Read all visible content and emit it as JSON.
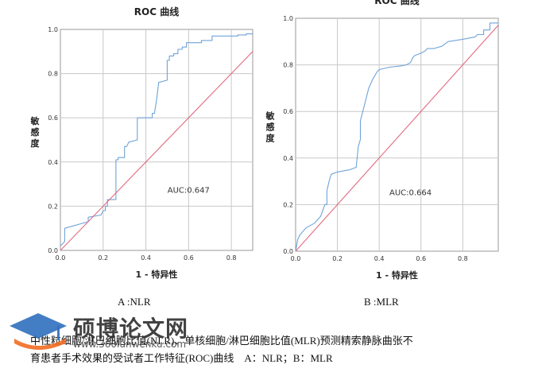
{
  "chart_data": [
    {
      "type": "line",
      "title": "ROC 曲线",
      "xlabel": "1 - 特异性",
      "ylabel": "敏感度",
      "xlim": [
        0,
        0.9
      ],
      "ylim": [
        0,
        1.0
      ],
      "xticks": [
        "0.0",
        "0.2",
        "0.4",
        "0.6",
        "0.8"
      ],
      "xtick_values": [
        0,
        0.2,
        0.4,
        0.6,
        0.8
      ],
      "yticks": [
        "0.0",
        "0.2",
        "0.4",
        "0.6",
        "0.8",
        "1.0"
      ],
      "ytick_values": [
        0,
        0.2,
        0.4,
        0.6,
        0.8,
        1.0
      ],
      "annotation": "AUC:0.647",
      "annotation_at": [
        0.6,
        0.26
      ],
      "series": [
        {
          "name": "ROC",
          "color": "#6fa3d8",
          "x": [
            0,
            0.02,
            0.02,
            0.13,
            0.13,
            0.19,
            0.2,
            0.21,
            0.21,
            0.22,
            0.22,
            0.26,
            0.26,
            0.27,
            0.27,
            0.3,
            0.3,
            0.31,
            0.32,
            0.36,
            0.36,
            0.43,
            0.43,
            0.44,
            0.45,
            0.45,
            0.46,
            0.46,
            0.5,
            0.5,
            0.51,
            0.51,
            0.53,
            0.53,
            0.55,
            0.55,
            0.57,
            0.57,
            0.59,
            0.59,
            0.66,
            0.66,
            0.71,
            0.71,
            0.83,
            0.83,
            0.87,
            0.87,
            0.9
          ],
          "y": [
            0.02,
            0.04,
            0.1,
            0.13,
            0.15,
            0.16,
            0.18,
            0.18,
            0.2,
            0.2,
            0.23,
            0.23,
            0.41,
            0.41,
            0.42,
            0.42,
            0.47,
            0.47,
            0.49,
            0.5,
            0.6,
            0.6,
            0.62,
            0.62,
            0.68,
            0.68,
            0.76,
            0.76,
            0.77,
            0.86,
            0.86,
            0.88,
            0.88,
            0.89,
            0.89,
            0.91,
            0.91,
            0.92,
            0.92,
            0.94,
            0.94,
            0.95,
            0.95,
            0.97,
            0.97,
            0.975,
            0.975,
            0.98,
            0.98
          ]
        },
        {
          "name": "Reference",
          "color": "#e26a7f",
          "x": [
            0,
            0.9
          ],
          "y": [
            0,
            0.9
          ]
        }
      ]
    },
    {
      "type": "line",
      "title": "ROC 曲线",
      "xlabel": "1 - 特异性",
      "ylabel": "敏感度",
      "xlim": [
        0,
        0.97
      ],
      "ylim": [
        0,
        1.0
      ],
      "xticks": [
        "0.0",
        "0.2",
        "0.4",
        "0.6",
        "0.8"
      ],
      "xtick_values": [
        0,
        0.2,
        0.4,
        0.6,
        0.8
      ],
      "yticks": [
        "0.0",
        "0.2",
        "0.4",
        "0.6",
        "0.8",
        "1.0"
      ],
      "ytick_values": [
        0,
        0.2,
        0.4,
        0.6,
        0.8,
        1.0
      ],
      "annotation": "AUC:0.664",
      "annotation_at": [
        0.55,
        0.24
      ],
      "series": [
        {
          "name": "ROC",
          "color": "#6fa3d8",
          "x": [
            0,
            0.01,
            0.02,
            0.05,
            0.09,
            0.12,
            0.14,
            0.15,
            0.15,
            0.16,
            0.17,
            0.2,
            0.26,
            0.29,
            0.3,
            0.31,
            0.31,
            0.33,
            0.35,
            0.37,
            0.39,
            0.4,
            0.45,
            0.5,
            0.53,
            0.55,
            0.56,
            0.57,
            0.6,
            0.62,
            0.63,
            0.66,
            0.7,
            0.73,
            0.8,
            0.86,
            0.87,
            0.9,
            0.9,
            0.93,
            0.93,
            0.97
          ],
          "y": [
            0.0,
            0.05,
            0.07,
            0.1,
            0.12,
            0.15,
            0.2,
            0.2,
            0.26,
            0.3,
            0.33,
            0.34,
            0.35,
            0.36,
            0.45,
            0.48,
            0.56,
            0.63,
            0.7,
            0.74,
            0.77,
            0.78,
            0.79,
            0.795,
            0.8,
            0.81,
            0.83,
            0.84,
            0.85,
            0.86,
            0.87,
            0.87,
            0.88,
            0.9,
            0.91,
            0.92,
            0.93,
            0.93,
            0.95,
            0.95,
            0.98,
            0.98
          ]
        },
        {
          "name": "Reference",
          "color": "#e26a7f",
          "x": [
            0,
            0.97
          ],
          "y": [
            0,
            0.97
          ]
        }
      ]
    }
  ],
  "panels": {
    "a_label": "A :NLR",
    "b_label": "B :MLR"
  },
  "caption": {
    "line1": "中性粒细胞/淋巴细胞比值(NLR)、单核细胞/淋巴细胞比值(MLR)预测精索静脉曲张不",
    "line2": "育患者手术效果的受试者工作特征(ROC)曲线　A：NLR；B：MLR"
  },
  "watermark": {
    "brand": "硕博论文网",
    "url": "www.360lunwenku.com"
  }
}
